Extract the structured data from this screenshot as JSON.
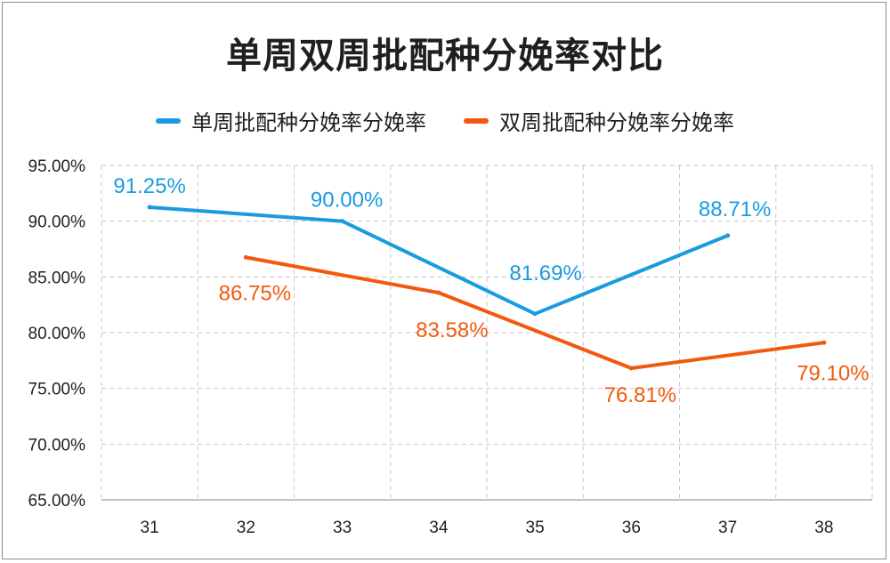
{
  "chart_data": {
    "type": "line",
    "title": "单周双周批配种分娩率对比",
    "categories": [
      "31",
      "32",
      "33",
      "34",
      "35",
      "36",
      "37",
      "38"
    ],
    "yticks": [
      "65.00%",
      "70.00%",
      "75.00%",
      "80.00%",
      "85.00%",
      "90.00%",
      "95.00%"
    ],
    "ylim": [
      65,
      95
    ],
    "grid": true,
    "legend_position": "top",
    "series": [
      {
        "name": "单周批配种分娩率分娩率",
        "color": "#1a9be0",
        "points": [
          {
            "x": "31",
            "y": 91.25,
            "label": "91.25%"
          },
          {
            "x": "33",
            "y": 90.0,
            "label": "90.00%"
          },
          {
            "x": "35",
            "y": 81.69,
            "label": "81.69%"
          },
          {
            "x": "37",
            "y": 88.71,
            "label": "88.71%"
          }
        ]
      },
      {
        "name": "双周批配种分娩率分娩率",
        "color": "#f2590f",
        "points": [
          {
            "x": "32",
            "y": 86.75,
            "label": "86.75%"
          },
          {
            "x": "34",
            "y": 83.58,
            "label": "83.58%"
          },
          {
            "x": "36",
            "y": 76.81,
            "label": "76.81%"
          },
          {
            "x": "38",
            "y": 79.1,
            "label": "79.10%"
          }
        ]
      }
    ]
  }
}
